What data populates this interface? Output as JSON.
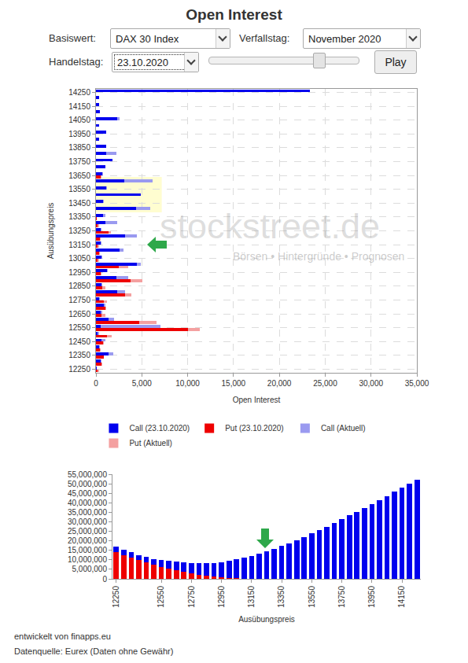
{
  "page": {
    "title": "Open Interest",
    "controls": {
      "basiswert": {
        "label": "Basiswert:",
        "value": "DAX 30 Index"
      },
      "verfallstag": {
        "label": "Verfallstag:",
        "value": "November 2020"
      },
      "handelstag": {
        "label": "Handelstag:",
        "value": "23.10.2020"
      },
      "button": "Play"
    },
    "watermark": {
      "name": "stockstreet.de",
      "tagline": "Börsen • Hintergründe • Prognosen"
    },
    "footer": [
      "entwickelt von finapps.eu",
      "Datenquelle: Eurex (Daten ohne Gewähr)"
    ]
  },
  "chart_data": [
    {
      "type": "bar",
      "orientation": "horizontal",
      "x_label": "Open Interest",
      "y_label": "Ausübungspreis",
      "categories": [
        12250,
        12300,
        12350,
        12400,
        12450,
        12500,
        12550,
        12600,
        12650,
        12700,
        12750,
        12800,
        12850,
        12900,
        12950,
        13000,
        13050,
        13100,
        13150,
        13200,
        13250,
        13300,
        13350,
        13400,
        13450,
        13500,
        13550,
        13600,
        13650,
        13700,
        13750,
        13800,
        13850,
        13900,
        13950,
        14000,
        14050,
        14100,
        14150,
        14200,
        14250
      ],
      "series": [
        {
          "name": "Call (23.10.2020)",
          "color": "#0000ee",
          "values": [
            100,
            500,
            1400,
            300,
            600,
            200,
            500,
            1400,
            500,
            900,
            300,
            2300,
            600,
            2200,
            1200,
            4500,
            600,
            2600,
            500,
            3200,
            500,
            1000,
            800,
            4400,
            800,
            4900,
            1100,
            3100,
            700,
            1000,
            1800,
            1100,
            1100,
            300,
            1100,
            300,
            2300,
            400,
            300,
            300,
            23300
          ]
        },
        {
          "name": "Put (23.10.2020)",
          "color": "#ee0000",
          "values": [
            200,
            600,
            900,
            400,
            800,
            1200,
            10000,
            4700,
            600,
            1000,
            900,
            3200,
            700,
            3800,
            500,
            2500,
            200,
            300,
            200,
            400,
            1400,
            200,
            100,
            0,
            0,
            0,
            0,
            0,
            500,
            0,
            0,
            0,
            0,
            0,
            0,
            0,
            0,
            0,
            0,
            0,
            0
          ]
        },
        {
          "name": "Call (Aktuell)",
          "color": "#9a9af0",
          "values": [
            100,
            600,
            1900,
            400,
            1000,
            300,
            7000,
            2000,
            700,
            1000,
            400,
            3200,
            700,
            3500,
            1300,
            4900,
            700,
            3000,
            600,
            4500,
            600,
            2300,
            1000,
            5900,
            900,
            4900,
            1200,
            6200,
            800,
            1000,
            1700,
            2200,
            1000,
            300,
            1100,
            300,
            2600,
            400,
            300,
            300,
            23300
          ]
        },
        {
          "name": "Put (Aktuell)",
          "color": "#f4a0a0",
          "values": [
            300,
            700,
            800,
            500,
            900,
            1700,
            11300,
            6600,
            1000,
            1100,
            1200,
            3900,
            1000,
            5100,
            600,
            3500,
            300,
            400,
            300,
            500,
            1600,
            300,
            100,
            0,
            0,
            0,
            0,
            0,
            600,
            0,
            0,
            0,
            0,
            0,
            0,
            0,
            0,
            0,
            0,
            0,
            0
          ]
        }
      ],
      "xlim": [
        0,
        35000
      ],
      "xticks": [
        0,
        {
          "value": 5000,
          "label": "5,000"
        },
        {
          "value": 10000,
          "label": "10,000"
        },
        {
          "value": 15000,
          "label": "15,000"
        },
        {
          "value": 20000,
          "label": "20,000"
        },
        {
          "value": 25000,
          "label": "25,000"
        },
        {
          "value": 30000,
          "label": "30,000"
        },
        {
          "value": 35000,
          "label": "35,000"
        }
      ],
      "ylim": [
        12225,
        14275
      ],
      "yticks": [
        12250,
        12350,
        12450,
        12550,
        12650,
        12750,
        12850,
        12950,
        13050,
        13150,
        13250,
        13350,
        13450,
        13550,
        13650,
        13750,
        13850,
        13950,
        14050,
        14150,
        14250
      ],
      "grid": true,
      "legend": "bottom"
    },
    {
      "type": "bar",
      "stacked": true,
      "x_label": "Ausübungspreis",
      "categories": [
        12250,
        12300,
        12350,
        12400,
        12450,
        12500,
        12550,
        12600,
        12650,
        12700,
        12750,
        12800,
        12850,
        12900,
        12950,
        13000,
        13050,
        13100,
        13150,
        13200,
        13250,
        13300,
        13350,
        13400,
        13450,
        13500,
        13550,
        13600,
        13650,
        13700,
        13750,
        13800,
        13850,
        13900,
        13950,
        14000,
        14050,
        14100,
        14150,
        14200,
        14250
      ],
      "series": [
        {
          "color": "#ee0000",
          "values": [
            14000000,
            12500000,
            11000000,
            9800000,
            8600000,
            7400000,
            6300000,
            5300000,
            4400000,
            3600000,
            2900000,
            2200000,
            1700000,
            1200000,
            800000,
            500000,
            300000,
            200000,
            100000,
            50000,
            20000,
            0,
            0,
            0,
            0,
            0,
            0,
            0,
            0,
            0,
            0,
            0,
            0,
            0,
            0,
            0,
            0,
            0,
            0,
            0,
            0
          ]
        },
        {
          "color": "#0000ee",
          "values": [
            3000000,
            3000000,
            3000000,
            2700000,
            2900000,
            3100000,
            3700000,
            4200000,
            4600000,
            4900000,
            5400000,
            6000000,
            6500000,
            7200000,
            8000000,
            9000000,
            10000000,
            11000000,
            12100000,
            13250000,
            14480000,
            15800000,
            17200000,
            18700000,
            20300000,
            22000000,
            23800000,
            25600000,
            27500000,
            29400000,
            31300000,
            33300000,
            35300000,
            37300000,
            39400000,
            41500000,
            43600000,
            45800000,
            47900000,
            50000000,
            52200000
          ]
        }
      ],
      "xlim": [
        12225,
        14275
      ],
      "xticks": [
        12250,
        12550,
        12750,
        12950,
        13150,
        13350,
        13550,
        13750,
        13950,
        14150
      ],
      "ylim": [
        0,
        55000000
      ],
      "yticks": [
        0,
        {
          "value": 5000000,
          "label": "5,000,000"
        },
        {
          "value": 10000000,
          "label": "10,000,000"
        },
        {
          "value": 15000000,
          "label": "15,000,000"
        },
        {
          "value": 20000000,
          "label": "20,000,000"
        },
        {
          "value": 25000000,
          "label": "25,000,000"
        },
        {
          "value": 30000000,
          "label": "30,000,000"
        },
        {
          "value": 35000000,
          "label": "35,000,000"
        },
        {
          "value": 40000000,
          "label": "40,000,000"
        },
        {
          "value": 45000000,
          "label": "45,000,000"
        },
        {
          "value": 50000000,
          "label": "50,000,000"
        },
        {
          "value": 55000000,
          "label": "55,000,000"
        }
      ],
      "grid": false
    }
  ]
}
